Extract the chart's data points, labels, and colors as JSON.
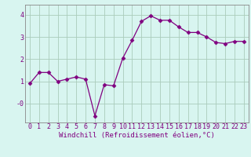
{
  "x": [
    0,
    1,
    2,
    3,
    4,
    5,
    6,
    7,
    8,
    9,
    10,
    11,
    12,
    13,
    14,
    15,
    16,
    17,
    18,
    19,
    20,
    21,
    22,
    23
  ],
  "y": [
    0.9,
    1.4,
    1.4,
    1.0,
    1.1,
    1.2,
    1.1,
    -0.55,
    0.85,
    0.8,
    2.05,
    2.85,
    3.7,
    3.95,
    3.75,
    3.75,
    3.45,
    3.2,
    3.2,
    3.0,
    2.75,
    2.7,
    2.8,
    2.8
  ],
  "line_color": "#800080",
  "marker": "D",
  "marker_size": 2.5,
  "bg_color": "#d8f5f0",
  "grid_color": "#aaccbb",
  "xlabel": "Windchill (Refroidissement éolien,°C)",
  "xlabel_fontsize": 6.5,
  "tick_fontsize": 6.0,
  "ytick_labels": [
    "-0",
    "1",
    "2",
    "3",
    "4"
  ],
  "ytick_vals": [
    0,
    1,
    2,
    3,
    4
  ],
  "ylim": [
    -0.85,
    4.45
  ],
  "xlim": [
    -0.5,
    23.5
  ],
  "text_color": "#800080"
}
